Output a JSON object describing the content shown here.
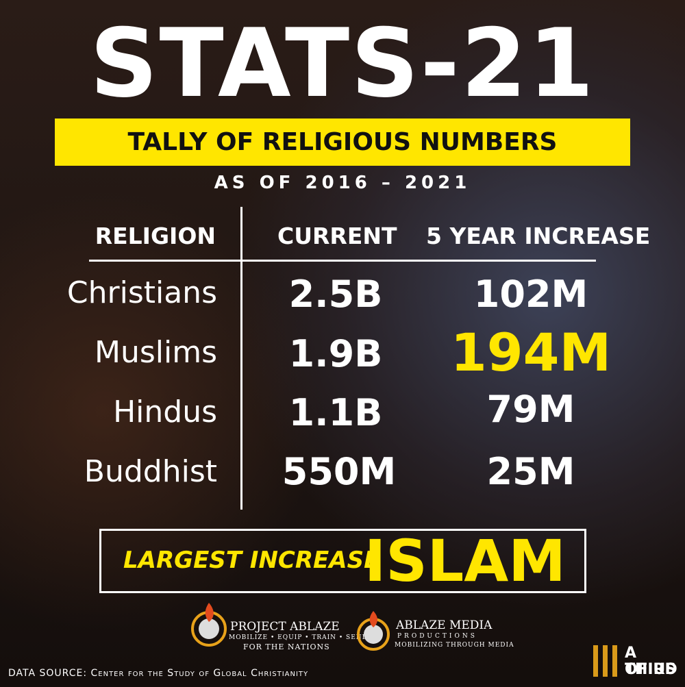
{
  "header": {
    "title": "STATS-21",
    "subtitle": "TALLY OF RELIGIOUS NUMBERS",
    "period": "AS OF 2016 – 2021"
  },
  "table": {
    "columns": [
      "RELIGION",
      "CURRENT",
      "5 YEAR INCREASE"
    ],
    "rows": [
      [
        "Christians",
        "2.5B",
        "102M"
      ],
      [
        "Muslims",
        "1.9B",
        "194M"
      ],
      [
        "Hindus",
        "1.1B",
        "79M"
      ],
      [
        "Buddhist",
        "550M",
        "25M"
      ]
    ]
  },
  "highlight": {
    "label": "LARGEST INCREASE",
    "value": "ISLAM"
  },
  "logos": [
    {
      "name": "PROJECT ABLAZE",
      "tagline": "MOBILIZE • EQUIP • TRAIN • SEND",
      "tagline2": "FOR THE NATIONS"
    },
    {
      "name": "ABLAZE MEDIA",
      "sub": "PRODUCTIONS",
      "tagline": "MOBILIZING THROUGH MEDIA"
    }
  ],
  "brand": [
    "A THIRD",
    "OF US"
  ],
  "footer": "DATA SOURCE: Center for the Study of Global Christianity"
}
